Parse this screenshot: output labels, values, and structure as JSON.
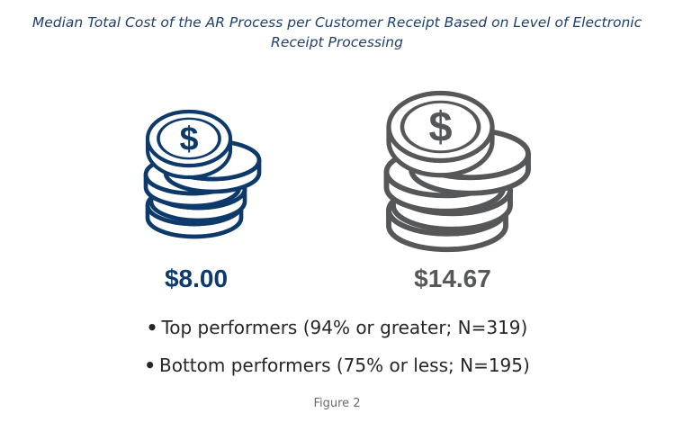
{
  "chart_data": {
    "type": "pictograph",
    "title_lines": [
      "Median Total Cost of the AR Process per Customer Receipt Based on Level of Electronic",
      "Receipt Processing"
    ],
    "series": [
      {
        "name": "Top performers (94% or greater; N=319)",
        "value": 8.0,
        "label": "$8.00",
        "color": "#0d3a6b"
      },
      {
        "name": "Bottom performers (75% or less; N=195)",
        "value": 14.67,
        "label": "$14.67",
        "color": "#555759"
      }
    ],
    "icon": "coin-stack-dollar-icon",
    "legend_bullet": "•",
    "caption": "Figure 2"
  }
}
